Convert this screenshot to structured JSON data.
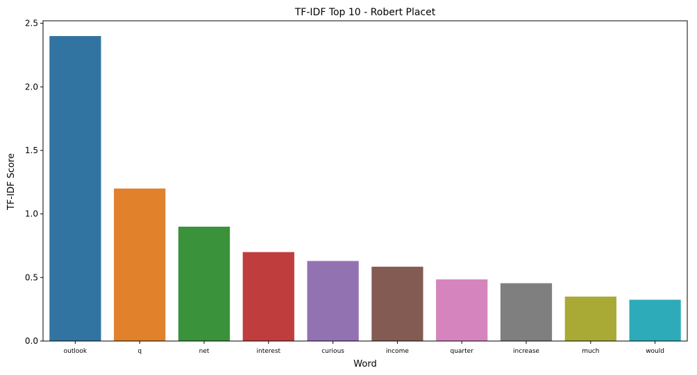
{
  "chart_data": {
    "type": "bar",
    "title": "TF-IDF Top 10 - Robert Placet",
    "xlabel": "Word",
    "ylabel": "TF-IDF Score",
    "categories": [
      "outlook",
      "q",
      "net",
      "interest",
      "curious",
      "income",
      "quarter",
      "increase",
      "much",
      "would"
    ],
    "values": [
      2.4,
      1.2,
      0.9,
      0.7,
      0.63,
      0.585,
      0.485,
      0.455,
      0.35,
      0.325
    ],
    "colors": [
      "#3274a1",
      "#e1812c",
      "#3a923a",
      "#c03d3e",
      "#9372b2",
      "#845b53",
      "#d684bd",
      "#7f7f7f",
      "#a9aa35",
      "#2eabb8"
    ],
    "ylim": [
      0,
      2.52
    ],
    "yticks": [
      "0.0",
      "0.5",
      "1.0",
      "1.5",
      "2.0",
      "2.5"
    ],
    "grid": false,
    "legend": "none"
  }
}
